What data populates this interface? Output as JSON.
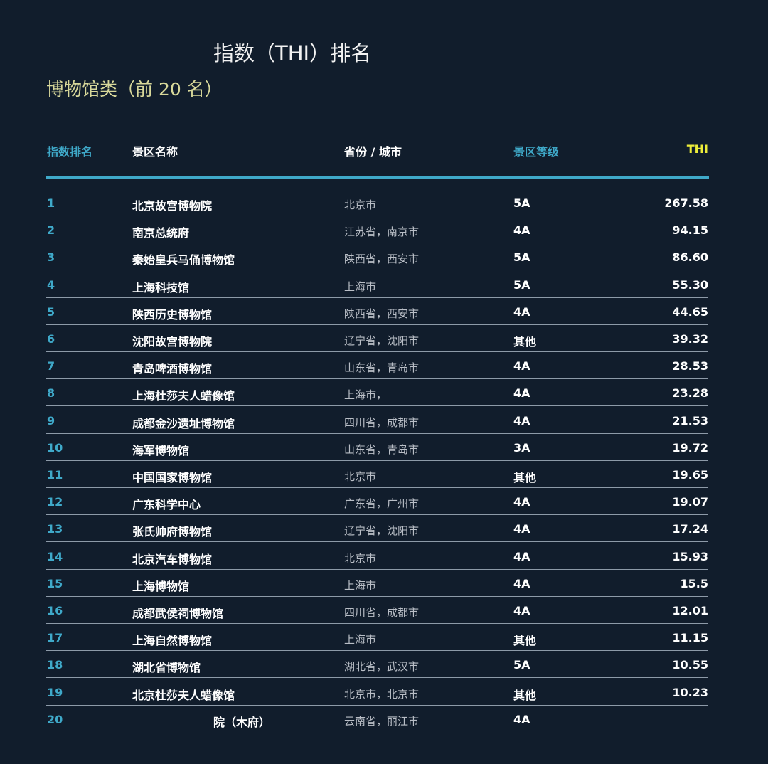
{
  "title": "指数（THI）排名",
  "subtitle": "博物馆类（前 20 名）",
  "headers": {
    "rank": "指数排名",
    "name": "景区名称",
    "city": "省份 / 城市",
    "level": "景区等级",
    "thi": "THI"
  },
  "rows": [
    {
      "rank": "1",
      "name": "北京故宫博物院",
      "city": "北京市",
      "level": "5A",
      "thi": "267.58"
    },
    {
      "rank": "2",
      "name": "南京总统府",
      "city": "江苏省，南京市",
      "level": "4A",
      "thi": "94.15"
    },
    {
      "rank": "3",
      "name": "秦始皇兵马俑博物馆",
      "city": "陕西省，西安市",
      "level": "5A",
      "thi": "86.60"
    },
    {
      "rank": "4",
      "name": "上海科技馆",
      "city": "上海市",
      "level": "5A",
      "thi": "55.30"
    },
    {
      "rank": "5",
      "name": "陕西历史博物馆",
      "city": "陕西省，西安市",
      "level": "4A",
      "thi": "44.65"
    },
    {
      "rank": "6",
      "name": "沈阳故宫博物院",
      "city": "辽宁省，沈阳市",
      "level": "其他",
      "thi": "39.32"
    },
    {
      "rank": "7",
      "name": "青岛啤酒博物馆",
      "city": "山东省，青岛市",
      "level": "4A",
      "thi": "28.53"
    },
    {
      "rank": "8",
      "name": "上海杜莎夫人蜡像馆",
      "city": "上海市，",
      "level": "4A",
      "thi": "23.28"
    },
    {
      "rank": "9",
      "name": "成都金沙遗址博物馆",
      "city": "四川省，成都市",
      "level": "4A",
      "thi": "21.53"
    },
    {
      "rank": "10",
      "name": "海军博物馆",
      "city": "山东省，青岛市",
      "level": "3A",
      "thi": "19.72"
    },
    {
      "rank": "11",
      "name": "中国国家博物馆",
      "city": "北京市",
      "level": "其他",
      "thi": "19.65"
    },
    {
      "rank": "12",
      "name": "广东科学中心",
      "city": "广东省，广州市",
      "level": "4A",
      "thi": "19.07"
    },
    {
      "rank": "13",
      "name": "张氏帅府博物馆",
      "city": "辽宁省，沈阳市",
      "level": "4A",
      "thi": "17.24"
    },
    {
      "rank": "14",
      "name": "北京汽车博物馆",
      "city": "北京市",
      "level": "4A",
      "thi": "15.93"
    },
    {
      "rank": "15",
      "name": "上海博物馆",
      "city": "上海市",
      "level": "4A",
      "thi": "15.5"
    },
    {
      "rank": "16",
      "name": "成都武侯祠博物馆",
      "city": "四川省，成都市",
      "level": "4A",
      "thi": "12.01"
    },
    {
      "rank": "17",
      "name": "上海自然博物馆",
      "city": "上海市",
      "level": "其他",
      "thi": "11.15"
    },
    {
      "rank": "18",
      "name": "湖北省博物馆",
      "city": "湖北省，武汉市",
      "level": "5A",
      "thi": "10.55"
    },
    {
      "rank": "19",
      "name": "北京杜莎夫人蜡像馆",
      "city": "北京市，北京市",
      "level": "其他",
      "thi": "10.23"
    },
    {
      "rank": "20",
      "name": "院（木府）",
      "city": "云南省，丽江市",
      "level": "4A",
      "thi": ""
    }
  ]
}
